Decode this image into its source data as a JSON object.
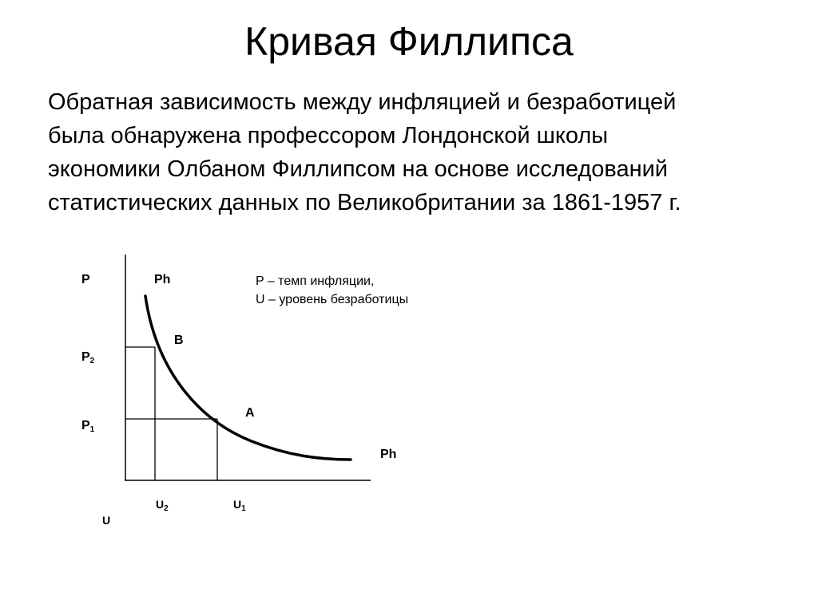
{
  "title": "Кривая Филлипса",
  "intro_lines": [
    "Обратная зависимость между инфляцией и безработицей",
    "была обнаружена профессором Лондонской школы",
    "экономики Олбаном Филлипсом на основе исследований",
    "статистических данных по Великобритании за 1861-1957 г."
  ],
  "diagram": {
    "y_axis_label": "P",
    "x_axis_label": "U",
    "curve_label_top": "Ph",
    "curve_label_bottom": "Ph",
    "point_b": "B",
    "point_a": "A",
    "p2": {
      "base": "P",
      "sub": "2"
    },
    "p1": {
      "base": "P",
      "sub": "1"
    },
    "u2": {
      "base": "U",
      "sub": "2"
    },
    "u1": {
      "base": "U",
      "sub": "1"
    },
    "legend": [
      "P – темп инфляции,",
      "U – уровень безработицы"
    ]
  }
}
